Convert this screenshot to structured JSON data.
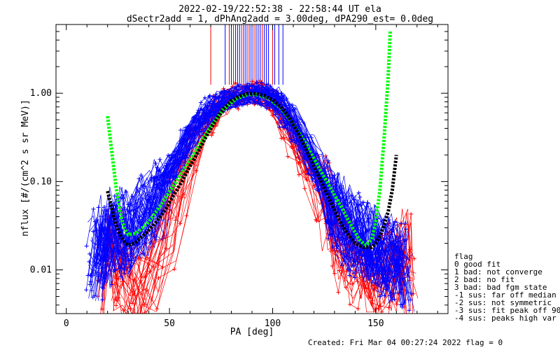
{
  "chart_data": {
    "type": "line",
    "title_line1": "2022-02-19/22:52:38 - 22:58:44 UT ela",
    "title_line2": "dSectr2add = 1, dPhAng2add = 3.00deg, dPA290_est=   0.0deg",
    "xlabel": "PA [deg]",
    "ylabel": "nflux [#/(cm^2 s sr MeV)]",
    "xlim": [
      -5,
      185
    ],
    "ylim": [
      0.0032,
      6.0
    ],
    "yscale": "log",
    "x_ticks": [
      0,
      50,
      100,
      150
    ],
    "x_tick_labels": [
      "0",
      "50",
      "100",
      "150"
    ],
    "y_ticks": [
      0.01,
      0.1,
      1.0
    ],
    "y_tick_labels": [
      "0.01",
      "0.10",
      "1.00"
    ],
    "series": [
      {
        "color": "#ff0000",
        "marker": "plus",
        "points": [
          [
            20,
            0.008
          ],
          [
            23,
            0.018
          ],
          [
            27,
            0.01
          ],
          [
            31,
            0.007
          ],
          [
            35,
            0.006
          ],
          [
            42,
            0.01
          ],
          [
            50,
            0.03
          ],
          [
            55,
            0.09
          ],
          [
            60,
            0.15
          ],
          [
            64,
            0.3
          ],
          [
            68,
            0.45
          ],
          [
            72,
            0.55
          ],
          [
            76,
            0.75
          ],
          [
            80,
            0.88
          ],
          [
            85,
            0.98
          ],
          [
            90,
            1.02
          ],
          [
            95,
            0.97
          ],
          [
            100,
            0.85
          ],
          [
            104,
            0.62
          ],
          [
            108,
            0.4
          ],
          [
            112,
            0.25
          ],
          [
            116,
            0.16
          ],
          [
            120,
            0.11
          ],
          [
            124,
            0.07
          ],
          [
            128,
            0.045
          ],
          [
            132,
            0.025
          ],
          [
            136,
            0.016
          ],
          [
            140,
            0.012
          ],
          [
            144,
            0.01
          ],
          [
            148,
            0.009
          ],
          [
            152,
            0.008
          ],
          [
            156,
            0.01
          ],
          [
            160,
            0.012
          ],
          [
            164,
            0.018
          ],
          [
            166,
            0.007
          ]
        ]
      },
      {
        "color": "#0000ff",
        "marker": "plus",
        "points": [
          [
            14,
            0.012
          ],
          [
            17,
            0.025
          ],
          [
            20,
            0.018
          ],
          [
            24,
            0.03
          ],
          [
            28,
            0.022
          ],
          [
            32,
            0.03
          ],
          [
            38,
            0.04
          ],
          [
            44,
            0.06
          ],
          [
            48,
            0.1
          ],
          [
            52,
            0.15
          ],
          [
            56,
            0.22
          ],
          [
            60,
            0.32
          ],
          [
            64,
            0.45
          ],
          [
            68,
            0.58
          ],
          [
            72,
            0.7
          ],
          [
            76,
            0.82
          ],
          [
            80,
            0.9
          ],
          [
            85,
            0.96
          ],
          [
            90,
            1.0
          ],
          [
            95,
            0.98
          ],
          [
            100,
            0.9
          ],
          [
            104,
            0.75
          ],
          [
            108,
            0.55
          ],
          [
            112,
            0.38
          ],
          [
            116,
            0.25
          ],
          [
            120,
            0.16
          ],
          [
            124,
            0.1
          ],
          [
            128,
            0.065
          ],
          [
            132,
            0.045
          ],
          [
            136,
            0.032
          ],
          [
            140,
            0.025
          ],
          [
            144,
            0.022
          ],
          [
            148,
            0.02
          ],
          [
            152,
            0.018
          ],
          [
            156,
            0.015
          ],
          [
            160,
            0.012
          ],
          [
            164,
            0.01
          ]
        ]
      }
    ],
    "fit_curves": [
      {
        "color": "#00ff00",
        "style": "dashed-thick",
        "points": [
          [
            20,
            0.55
          ],
          [
            22,
            0.22
          ],
          [
            24,
            0.09
          ],
          [
            26,
            0.045
          ],
          [
            28,
            0.03
          ],
          [
            30,
            0.025
          ],
          [
            34,
            0.026
          ],
          [
            40,
            0.035
          ],
          [
            46,
            0.055
          ],
          [
            52,
            0.09
          ],
          [
            58,
            0.15
          ],
          [
            64,
            0.25
          ],
          [
            70,
            0.42
          ],
          [
            76,
            0.65
          ],
          [
            82,
            0.86
          ],
          [
            88,
            0.97
          ],
          [
            92,
            0.97
          ],
          [
            98,
            0.88
          ],
          [
            104,
            0.68
          ],
          [
            110,
            0.45
          ],
          [
            116,
            0.27
          ],
          [
            122,
            0.15
          ],
          [
            128,
            0.085
          ],
          [
            134,
            0.048
          ],
          [
            138,
            0.032
          ],
          [
            142,
            0.022
          ],
          [
            145,
            0.019
          ],
          [
            148,
            0.022
          ],
          [
            150,
            0.035
          ],
          [
            152,
            0.08
          ],
          [
            154,
            0.3
          ],
          [
            156,
            1.5
          ],
          [
            157,
            5.0
          ]
        ]
      },
      {
        "color": "#000000",
        "style": "dashed-thick",
        "points": [
          [
            20,
            0.078
          ],
          [
            22,
            0.05
          ],
          [
            24,
            0.033
          ],
          [
            26,
            0.025
          ],
          [
            28,
            0.021
          ],
          [
            30,
            0.019
          ],
          [
            33,
            0.02
          ],
          [
            36,
            0.023
          ],
          [
            40,
            0.028
          ],
          [
            44,
            0.036
          ],
          [
            48,
            0.048
          ],
          [
            52,
            0.07
          ],
          [
            56,
            0.1
          ],
          [
            60,
            0.15
          ],
          [
            64,
            0.22
          ],
          [
            68,
            0.33
          ],
          [
            72,
            0.48
          ],
          [
            76,
            0.66
          ],
          [
            80,
            0.82
          ],
          [
            84,
            0.93
          ],
          [
            88,
            0.99
          ],
          [
            92,
            0.99
          ],
          [
            96,
            0.94
          ],
          [
            100,
            0.84
          ],
          [
            104,
            0.7
          ],
          [
            108,
            0.53
          ],
          [
            112,
            0.37
          ],
          [
            116,
            0.24
          ],
          [
            120,
            0.15
          ],
          [
            124,
            0.095
          ],
          [
            128,
            0.06
          ],
          [
            132,
            0.038
          ],
          [
            136,
            0.026
          ],
          [
            140,
            0.02
          ],
          [
            144,
            0.018
          ],
          [
            148,
            0.018
          ],
          [
            150,
            0.02
          ],
          [
            152,
            0.024
          ],
          [
            154,
            0.032
          ],
          [
            156,
            0.045
          ],
          [
            158,
            0.08
          ],
          [
            160,
            0.2
          ]
        ]
      }
    ],
    "spike_lines": [
      {
        "color": "#ff0000",
        "x": [
          70,
          79,
          81,
          85,
          88,
          91,
          95,
          100
        ]
      },
      {
        "color": "#0000ff",
        "x": [
          77,
          80,
          82,
          83,
          84,
          86,
          87,
          89,
          90,
          92,
          93,
          94,
          96,
          97,
          98,
          101,
          103,
          105
        ]
      }
    ],
    "legend": {
      "title": "flag",
      "entries": [
        " 0 good fit",
        " 1 bad: not converge",
        " 2 bad: no fit",
        " 3 bad: bad fgm state",
        "-1 sus: far off median",
        "-2 sus: not symmetric",
        "-3 sus: fit peak off 90",
        "-4 sus: peaks high var"
      ],
      "placement": "right"
    },
    "footer": "Created: Fri Mar 04 00:27:24 2022   flag = 0"
  }
}
